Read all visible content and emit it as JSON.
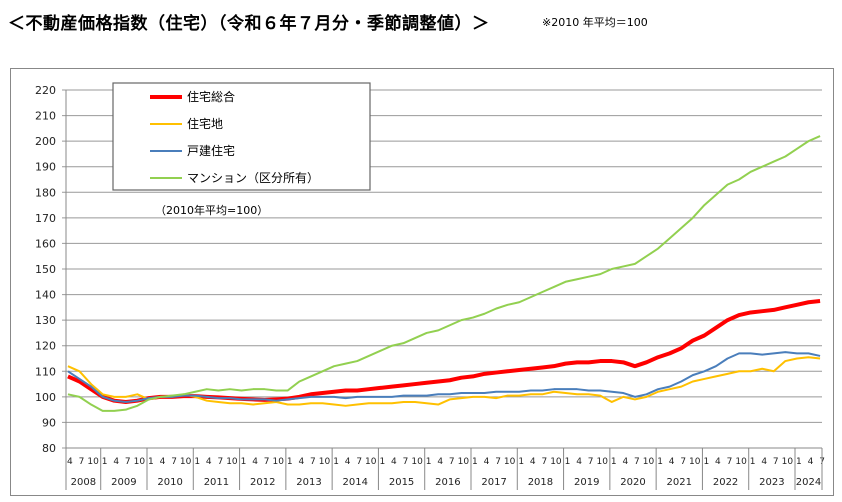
{
  "header": {
    "title": "＜不動産価格指数（住宅）（令和６年７月分・季節調整値）＞",
    "note": "※2010 年平均＝100"
  },
  "chart_data": {
    "type": "line",
    "title": "不動産価格指数（住宅）（令和６年７月分・季節調整値）",
    "subtitle": "（2010年平均=100）",
    "xlabel": "",
    "ylabel": "",
    "ylim": [
      80,
      220
    ],
    "yticks": [
      80,
      90,
      100,
      110,
      120,
      130,
      140,
      150,
      160,
      170,
      180,
      190,
      200,
      210,
      220
    ],
    "grid": true,
    "legend_position": "top-left",
    "x_start": "2008-04",
    "x_end": "2024-07",
    "x_step_months": 3,
    "years": [
      {
        "year": "2008",
        "months": [
          "4",
          "7",
          "10"
        ]
      },
      {
        "year": "2009",
        "months": [
          "1",
          "4",
          "7",
          "10"
        ]
      },
      {
        "year": "2010",
        "months": [
          "1",
          "4",
          "7",
          "10"
        ]
      },
      {
        "year": "2011",
        "months": [
          "1",
          "4",
          "7",
          "10"
        ]
      },
      {
        "year": "2012",
        "months": [
          "1",
          "4",
          "7",
          "10"
        ]
      },
      {
        "year": "2013",
        "months": [
          "1",
          "4",
          "7",
          "10"
        ]
      },
      {
        "year": "2014",
        "months": [
          "1",
          "4",
          "7",
          "10"
        ]
      },
      {
        "year": "2015",
        "months": [
          "1",
          "4",
          "7",
          "10"
        ]
      },
      {
        "year": "2016",
        "months": [
          "1",
          "4",
          "7",
          "10"
        ]
      },
      {
        "year": "2017",
        "months": [
          "1",
          "4",
          "7",
          "10"
        ]
      },
      {
        "year": "2018",
        "months": [
          "1",
          "4",
          "7",
          "10"
        ]
      },
      {
        "year": "2019",
        "months": [
          "1",
          "4",
          "7",
          "10"
        ]
      },
      {
        "year": "2020",
        "months": [
          "1",
          "4",
          "7",
          "10"
        ]
      },
      {
        "year": "2021",
        "months": [
          "1",
          "4",
          "7",
          "10"
        ]
      },
      {
        "year": "2022",
        "months": [
          "1",
          "4",
          "7",
          "10"
        ]
      },
      {
        "year": "2023",
        "months": [
          "1",
          "4",
          "7",
          "10"
        ]
      },
      {
        "year": "2024",
        "months": [
          "1",
          "4",
          "7"
        ]
      }
    ],
    "series": [
      {
        "name": "住宅総合",
        "color": "#ff0000",
        "width": 4,
        "values": [
          108,
          106,
          103,
          100,
          98.5,
          98,
          98.5,
          99.5,
          100,
          100,
          100.3,
          100.3,
          100,
          99.8,
          99.5,
          99.2,
          99,
          98.8,
          99,
          99.3,
          100,
          101,
          101.5,
          102,
          102.5,
          102.5,
          103,
          103.5,
          104,
          104.5,
          105,
          105.5,
          106,
          106.5,
          107.5,
          108,
          109,
          109.5,
          110,
          110.5,
          111,
          111.5,
          112,
          113,
          113.5,
          113.5,
          114,
          114,
          113.5,
          112,
          113.5,
          115.5,
          117,
          119,
          122,
          124,
          127,
          130,
          132,
          133,
          133.5,
          134,
          135,
          136,
          137,
          137.5
        ]
      },
      {
        "name": "住宅地",
        "color": "#ffc000",
        "width": 2,
        "values": [
          112,
          110,
          105,
          101,
          100,
          100,
          101,
          99,
          100,
          100,
          101,
          100,
          98.5,
          98,
          97.5,
          97.5,
          97,
          97.5,
          98,
          97,
          97,
          97.5,
          97.5,
          97,
          96.5,
          97,
          97.5,
          97.5,
          97.5,
          98,
          98,
          97.5,
          97,
          99,
          99.5,
          100,
          100,
          99.5,
          100.5,
          100.5,
          101,
          101,
          102,
          101.5,
          101,
          101,
          100.5,
          98,
          100,
          99,
          100,
          102,
          103,
          104,
          106,
          107,
          108,
          109,
          110,
          110,
          111,
          110,
          114,
          115,
          115.5,
          115
        ]
      },
      {
        "name": "戸建住宅",
        "color": "#4a7ebb",
        "width": 2,
        "values": [
          110,
          107,
          104,
          100,
          98.5,
          98,
          98.5,
          99.5,
          100,
          100,
          100.5,
          100.5,
          100,
          99.5,
          99.5,
          99,
          99,
          99,
          98.5,
          99,
          99.5,
          100,
          100,
          100,
          99.5,
          100,
          100,
          100,
          100,
          100.5,
          100.5,
          100.5,
          101,
          101,
          101.5,
          101.5,
          101.5,
          102,
          102,
          102,
          102.5,
          102.5,
          103,
          103,
          103,
          102.5,
          102.5,
          102,
          101.5,
          100,
          101,
          103,
          104,
          106,
          108.5,
          110,
          112,
          115,
          117,
          117,
          116.5,
          117,
          117.5,
          117,
          117,
          116
        ]
      },
      {
        "name": "マンション（区分所有）",
        "color": "#92d050",
        "width": 2,
        "values": [
          101,
          100,
          97,
          94.5,
          94.5,
          95,
          96.5,
          99,
          100,
          100.5,
          101,
          102,
          103,
          102.5,
          103,
          102.5,
          103,
          103,
          102.5,
          102.5,
          106,
          108,
          110,
          112,
          113,
          114,
          116,
          118,
          120,
          121,
          123,
          125,
          126,
          128,
          130,
          131,
          132.5,
          134.5,
          136,
          137,
          139,
          141,
          143,
          145,
          146,
          147,
          148,
          150,
          151,
          152,
          155,
          158,
          162,
          166,
          170,
          175,
          179,
          183,
          185,
          188,
          190,
          192,
          194,
          197,
          200,
          202
        ]
      }
    ]
  }
}
